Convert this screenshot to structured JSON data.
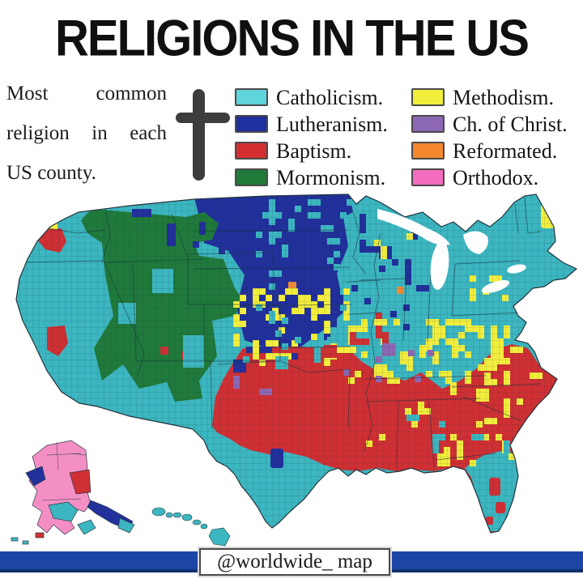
{
  "title": "RELIGIONS IN THE US",
  "subtitle": {
    "lines": [
      "Most common",
      "religion in each",
      "US county."
    ]
  },
  "legend": {
    "columns": [
      {
        "items": [
          {
            "label": "Catholicism.",
            "key": "catholicism"
          },
          {
            "label": "Lutheranism.",
            "key": "lutheranism"
          },
          {
            "label": "Baptism.",
            "key": "baptism"
          },
          {
            "label": "Mormonism.",
            "key": "mormonism"
          }
        ]
      },
      {
        "items": [
          {
            "label": "Methodism.",
            "key": "methodism"
          },
          {
            "label": "Ch. of Christ.",
            "key": "church_of_christ"
          },
          {
            "label": "Reformated.",
            "key": "reformated"
          },
          {
            "label": "Orthodox.",
            "key": "orthodox"
          }
        ]
      }
    ]
  },
  "colors": {
    "legend": {
      "catholicism": "#5fd4d9",
      "lutheranism": "#1f2f9e",
      "baptism": "#d32f32",
      "mormonism": "#1f7a3a",
      "methodism": "#f1ef3b",
      "church_of_christ": "#8d68b2",
      "reformated": "#f5882f",
      "orthodox": "#f46cc0"
    },
    "map": {
      "catholicism": "#3cb6c0",
      "lutheranism": "#22309c",
      "baptism": "#cf3034",
      "mormonism": "#207a3c",
      "methodism": "#f2ee3d",
      "church_of_christ": "#8d68b2",
      "reformated": "#ef8a35",
      "orthodox": "#f48fc6",
      "water": "#ffffff",
      "border": "#22343d"
    },
    "footer_bar": "#1c45a6",
    "cross": "#3d3d3d"
  },
  "footer": {
    "handle": "@worldwide_ map"
  }
}
